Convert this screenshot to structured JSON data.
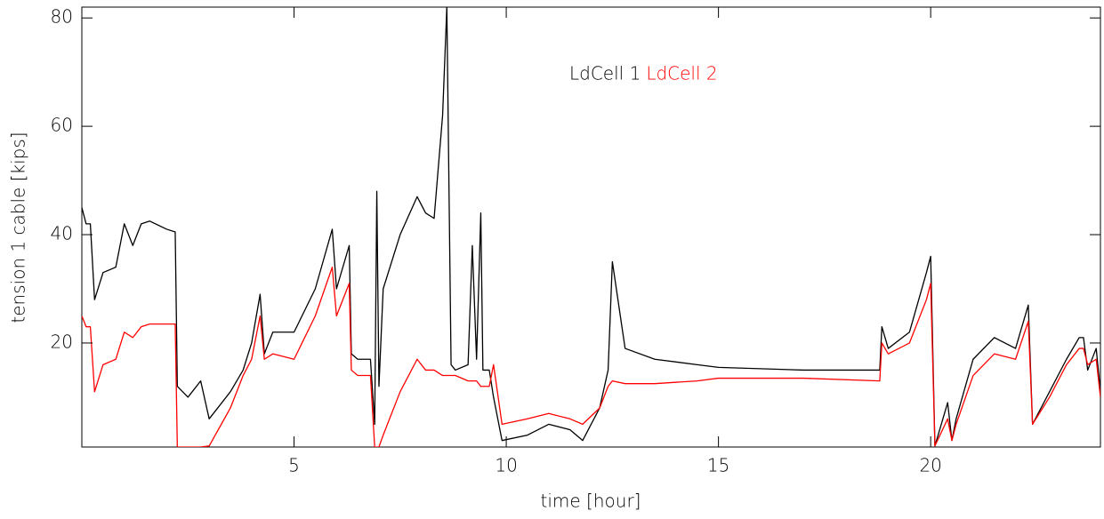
{
  "chart_data": {
    "type": "line",
    "x_label": "time [hour]",
    "y_label": "tension 1 cable [kips]",
    "x": [
      0,
      0.1,
      0.2,
      0.3,
      0.5,
      0.8,
      1.0,
      1.2,
      1.4,
      1.6,
      2.0,
      2.2,
      2.25,
      2.5,
      2.8,
      3.0,
      3.5,
      3.8,
      4.0,
      4.2,
      4.3,
      4.5,
      5.0,
      5.5,
      5.9,
      6.0,
      6.3,
      6.35,
      6.5,
      6.8,
      6.9,
      6.95,
      7.0,
      7.1,
      7.5,
      7.9,
      8.1,
      8.3,
      8.5,
      8.6,
      8.7,
      8.8,
      9.1,
      9.2,
      9.3,
      9.4,
      9.45,
      9.6,
      9.7,
      9.9,
      10.5,
      11.0,
      11.5,
      11.8,
      12.2,
      12.4,
      12.5,
      12.8,
      13.5,
      14.5,
      15,
      17,
      18.8,
      18.85,
      19.0,
      19.5,
      19.9,
      20.0,
      20.1,
      20.4,
      20.5,
      20.6,
      21,
      21.5,
      22,
      22.3,
      22.4,
      22.8,
      23.2,
      23.5,
      23.6,
      23.7,
      23.9,
      24
    ],
    "series": [
      {
        "name": "LdCell 1",
        "color": "#000000",
        "values": [
          45,
          42,
          42,
          28,
          33,
          34,
          42,
          38,
          42,
          42.5,
          41,
          40.5,
          12,
          10,
          13,
          6,
          11,
          15,
          20,
          29,
          18,
          22,
          22,
          30,
          41,
          30,
          38,
          18,
          17,
          17,
          5,
          48,
          12,
          30,
          40,
          47,
          44,
          43,
          62,
          82,
          16,
          15,
          16,
          38,
          17,
          44,
          15,
          15,
          10,
          2,
          3,
          5,
          4,
          2,
          8,
          15,
          35,
          19,
          17,
          16,
          15.5,
          15,
          15,
          23,
          19,
          22,
          33,
          36,
          1,
          9,
          2,
          6,
          17,
          21,
          19,
          27,
          5,
          11,
          17,
          21,
          21,
          15,
          19,
          11
        ]
      },
      {
        "name": "LdCell 2",
        "color": "#ff0000",
        "values": [
          25,
          23,
          23,
          11,
          16,
          17,
          22,
          21,
          23,
          23.5,
          23.5,
          23.5,
          0.8,
          0.8,
          0.8,
          1,
          8,
          14,
          17,
          25,
          17,
          18,
          17,
          25,
          34,
          25,
          31,
          15,
          14,
          14,
          0.8,
          0.8,
          0.8,
          3,
          11,
          17,
          15,
          15,
          14,
          14,
          14,
          14,
          13,
          13,
          13,
          12,
          12,
          12,
          16,
          5,
          6,
          7,
          6,
          5,
          8,
          12,
          13,
          12.5,
          12.5,
          13,
          13.5,
          13.5,
          13,
          20,
          18,
          20,
          28,
          31,
          1,
          6,
          2,
          5,
          14,
          18,
          17,
          24,
          5,
          10,
          16,
          19,
          19,
          16,
          17,
          10
        ]
      }
    ],
    "xlim": [
      0,
      24
    ],
    "xticks": [
      5,
      10,
      15,
      20
    ],
    "ylim": [
      0.8,
      82
    ],
    "yticks": [
      20,
      40,
      60,
      80
    ]
  }
}
